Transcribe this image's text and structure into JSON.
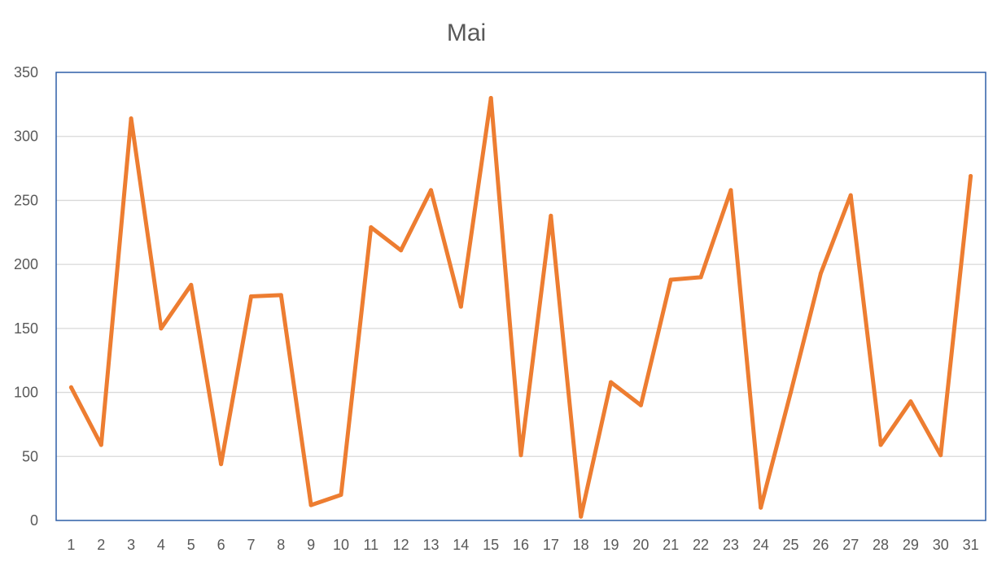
{
  "chart_data": {
    "type": "line",
    "title": "Mai",
    "xlabel": "",
    "ylabel": "",
    "ylim": [
      0,
      350
    ],
    "yticks": [
      0,
      50,
      100,
      150,
      200,
      250,
      300,
      350
    ],
    "grid": true,
    "legend": "none",
    "categories": [
      "1",
      "2",
      "3",
      "4",
      "5",
      "6",
      "7",
      "8",
      "9",
      "10",
      "11",
      "12",
      "13",
      "14",
      "15",
      "16",
      "17",
      "18",
      "19",
      "20",
      "21",
      "22",
      "23",
      "24",
      "25",
      "26",
      "27",
      "28",
      "29",
      "30",
      "31"
    ],
    "series": [
      {
        "color": "#ED7D31",
        "values": [
          104,
          59,
          314,
          150,
          184,
          44,
          175,
          176,
          12,
          20,
          229,
          211,
          258,
          167,
          330,
          51,
          238,
          3,
          108,
          90,
          188,
          190,
          258,
          10,
          100,
          193,
          254,
          59,
          93,
          51,
          269
        ]
      }
    ]
  },
  "colors": {
    "line": "#ED7D31",
    "grid": "#D9D9D9",
    "axis_frame": "#2E5FA7",
    "text": "#595959"
  }
}
